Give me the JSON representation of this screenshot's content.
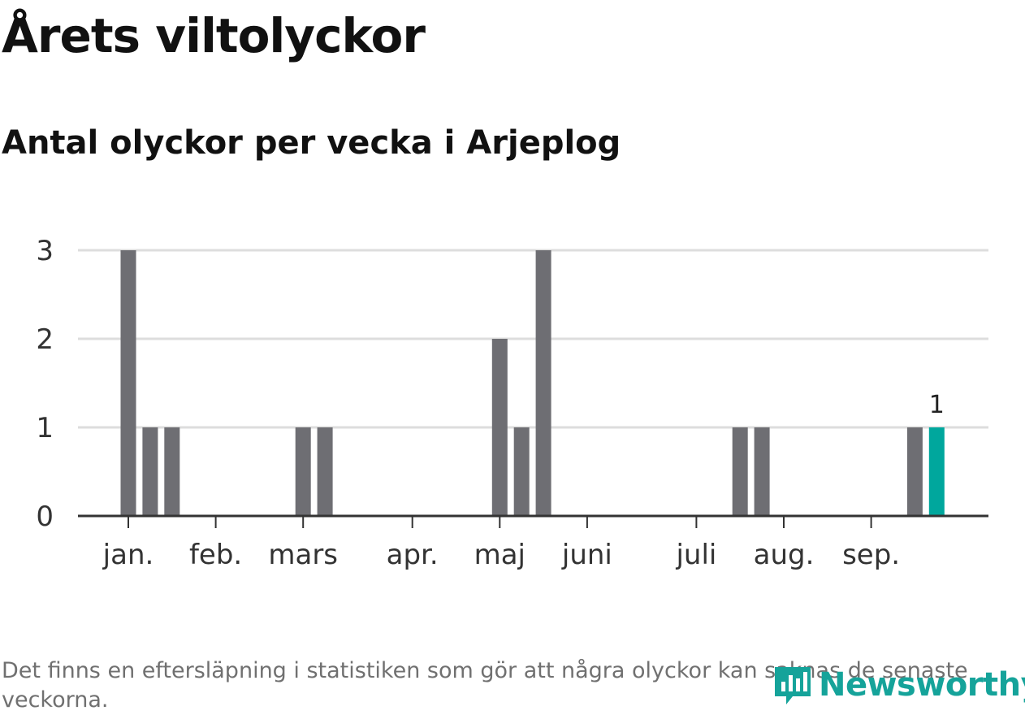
{
  "title": "Årets viltolyckor",
  "subtitle": "Antal olyckor per vecka i Arjeplog",
  "note": "Det finns en eftersläpning i statistiken som gör att några olyckor kan saknas de senaste veckorna.",
  "logo_text": "Newsworthy",
  "colors": {
    "bar": "#6e6e73",
    "highlight": "#00a79d",
    "grid": "#dddddd",
    "axis": "#333333"
  },
  "chart_data": {
    "type": "bar",
    "ylim": [
      0,
      3
    ],
    "yticks": [
      "0",
      "1",
      "2",
      "3"
    ],
    "x_week_range": [
      1,
      40
    ],
    "month_ticks": [
      {
        "label": "jan.",
        "week": 1.0
      },
      {
        "label": "feb.",
        "week": 5.0
      },
      {
        "label": "mars",
        "week": 9.0
      },
      {
        "label": "apr.",
        "week": 14.0
      },
      {
        "label": "maj",
        "week": 18.0
      },
      {
        "label": "juni",
        "week": 22.0
      },
      {
        "label": "juli",
        "week": 27.0
      },
      {
        "label": "aug.",
        "week": 31.0
      },
      {
        "label": "sep.",
        "week": 35.0
      }
    ],
    "bars": [
      {
        "week": 1,
        "value": 3
      },
      {
        "week": 2,
        "value": 1
      },
      {
        "week": 3,
        "value": 1
      },
      {
        "week": 9,
        "value": 1
      },
      {
        "week": 10,
        "value": 1
      },
      {
        "week": 18,
        "value": 2
      },
      {
        "week": 19,
        "value": 1
      },
      {
        "week": 20,
        "value": 3
      },
      {
        "week": 29,
        "value": 1
      },
      {
        "week": 30,
        "value": 1
      },
      {
        "week": 37,
        "value": 1
      },
      {
        "week": 38,
        "value": 1,
        "highlight": true,
        "label": "1"
      }
    ]
  }
}
